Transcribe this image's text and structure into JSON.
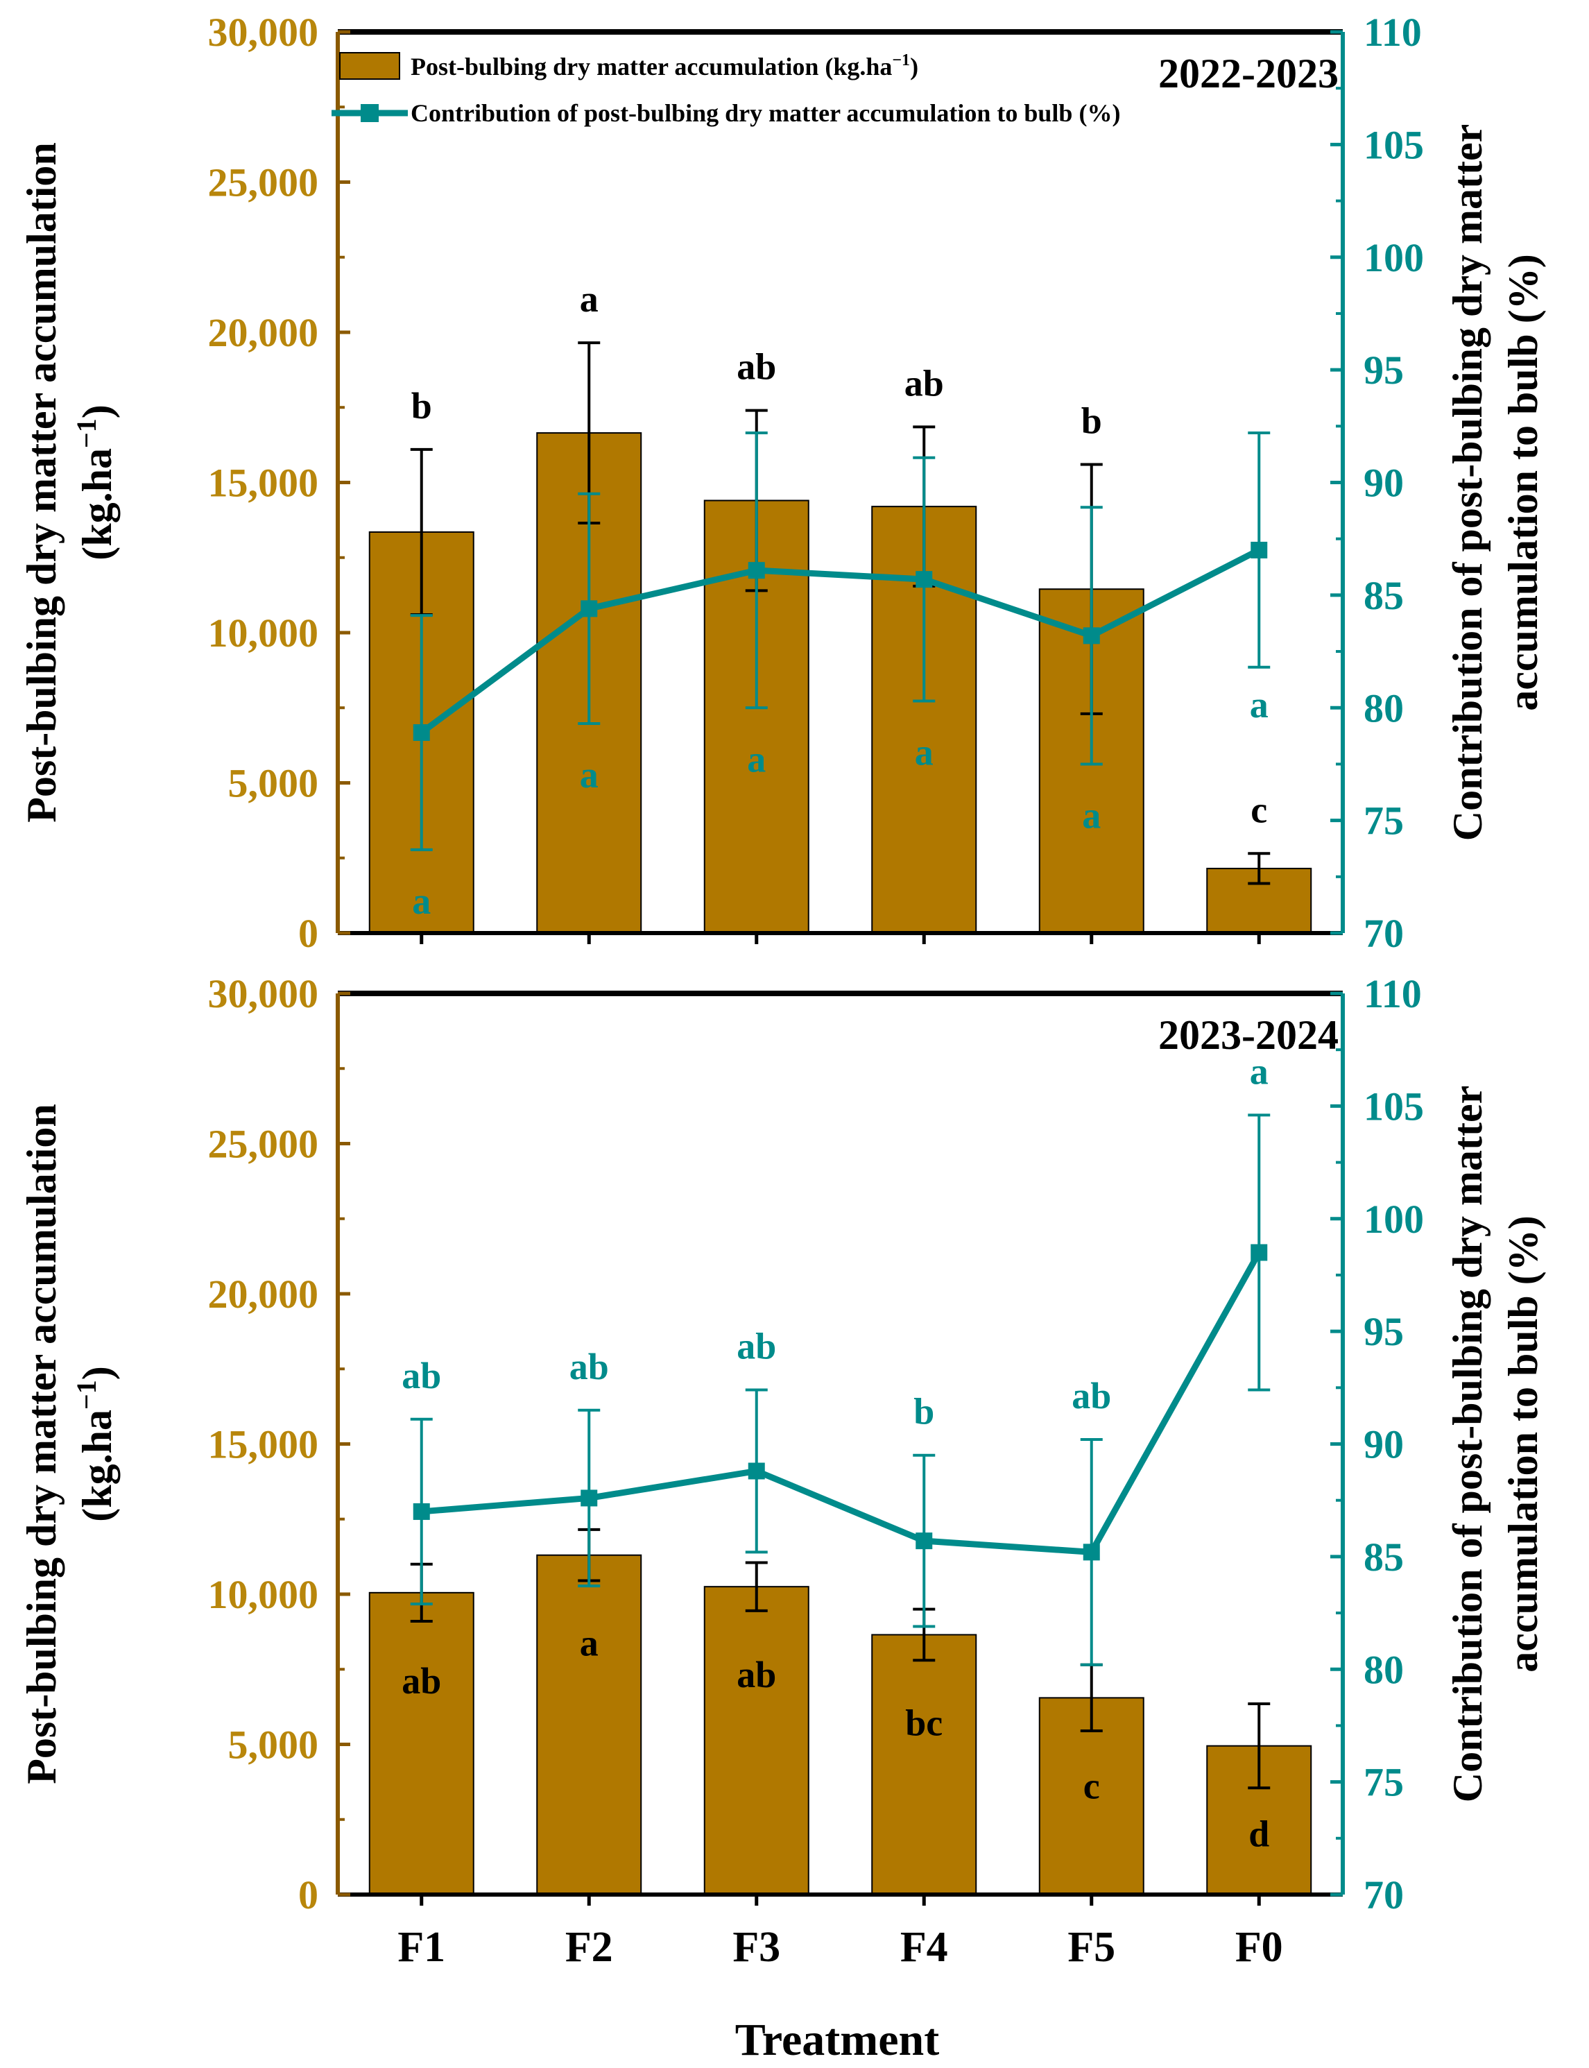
{
  "colors": {
    "bar": "#B07800",
    "line": "#008B8B",
    "left_axis": "#8B5A00",
    "left_tick_text": "#B8860B",
    "right_axis": "#008B8B",
    "text": "#000000"
  },
  "xlabel": "Treatment",
  "legend": {
    "bar_label": "Post-bulbing dry matter accumulation (kg.ha",
    "bar_label_sup": "−1",
    "bar_label_end": ")",
    "line_label": "Contribution of post-bulbing dry matter accumulation to bulb (%)"
  },
  "chart_data": [
    {
      "type": "bar+line",
      "title": "2022-2023",
      "categories": [
        "F1",
        "F2",
        "F3",
        "F4",
        "F5",
        "F0"
      ],
      "ylabel_left": [
        "Post-bulbing dry matter accumulation",
        "(kg.ha",
        "−1",
        ")"
      ],
      "ylabel_right": [
        "Contribution of post-bulbing dry matter",
        "accumulation to bulb (%)"
      ],
      "ylim_left": [
        0,
        30000
      ],
      "ylim_right": [
        70,
        110
      ],
      "left_ticks": [
        0,
        5000,
        10000,
        15000,
        20000,
        25000,
        30000
      ],
      "left_tick_labels": [
        "0",
        "5,000",
        "10,000",
        "15,000",
        "20,000",
        "25,000",
        "30,000"
      ],
      "right_ticks": [
        70,
        75,
        80,
        85,
        90,
        95,
        100,
        105,
        110
      ],
      "right_tick_labels": [
        "70",
        "75",
        "80",
        "85",
        "90",
        "95",
        "100",
        "105",
        "110"
      ],
      "series": [
        {
          "name": "Post-bulbing dry matter accumulation (kg.ha−1)",
          "kind": "bar",
          "axis": "left",
          "values": [
            13350,
            16650,
            14400,
            14200,
            11450,
            2150
          ],
          "errors": [
            2750,
            3000,
            3000,
            2650,
            4150,
            500
          ],
          "letters": [
            "b",
            "a",
            "ab",
            "ab",
            "b",
            "c"
          ]
        },
        {
          "name": "Contribution of post-bulbing dry matter accumulation to bulb (%)",
          "kind": "line",
          "axis": "right",
          "values": [
            78.9,
            84.4,
            86.1,
            85.7,
            83.2,
            87.0
          ],
          "errors": [
            5.2,
            5.1,
            6.1,
            5.4,
            5.7,
            5.2
          ],
          "letters": [
            "a",
            "a",
            "a",
            "a",
            "a",
            "a"
          ]
        }
      ]
    },
    {
      "type": "bar+line",
      "title": "2023-2024",
      "categories": [
        "F1",
        "F2",
        "F3",
        "F4",
        "F5",
        "F0"
      ],
      "ylabel_left": [
        "Post-bulbing dry matter accumulation",
        "(kg.ha",
        "−1",
        ")"
      ],
      "ylabel_right": [
        "Contribution of post-bulbing dry matter",
        "accumulation to bulb (%)"
      ],
      "ylim_left": [
        0,
        30000
      ],
      "ylim_right": [
        70,
        110
      ],
      "left_ticks": [
        0,
        5000,
        10000,
        15000,
        20000,
        25000,
        30000
      ],
      "left_tick_labels": [
        "0",
        "5,000",
        "10,000",
        "15,000",
        "20,000",
        "25,000",
        "30,000"
      ],
      "right_ticks": [
        70,
        75,
        80,
        85,
        90,
        95,
        100,
        105,
        110
      ],
      "right_tick_labels": [
        "70",
        "75",
        "80",
        "85",
        "90",
        "95",
        "100",
        "105",
        "110"
      ],
      "series": [
        {
          "name": "Post-bulbing dry matter accumulation (kg.ha−1)",
          "kind": "bar",
          "axis": "left",
          "values": [
            10050,
            11300,
            10250,
            8650,
            6550,
            4950
          ],
          "errors": [
            950,
            850,
            800,
            850,
            1100,
            1400
          ],
          "letters": [
            "ab",
            "a",
            "ab",
            "bc",
            "c",
            "d"
          ]
        },
        {
          "name": "Contribution of post-bulbing dry matter accumulation to bulb (%)",
          "kind": "line",
          "axis": "right",
          "values": [
            87.0,
            87.6,
            88.8,
            85.7,
            85.2,
            98.5
          ],
          "errors": [
            4.1,
            3.9,
            3.6,
            3.8,
            5.0,
            6.1
          ],
          "letters": [
            "ab",
            "ab",
            "ab",
            "b",
            "ab",
            "a"
          ]
        }
      ]
    }
  ]
}
